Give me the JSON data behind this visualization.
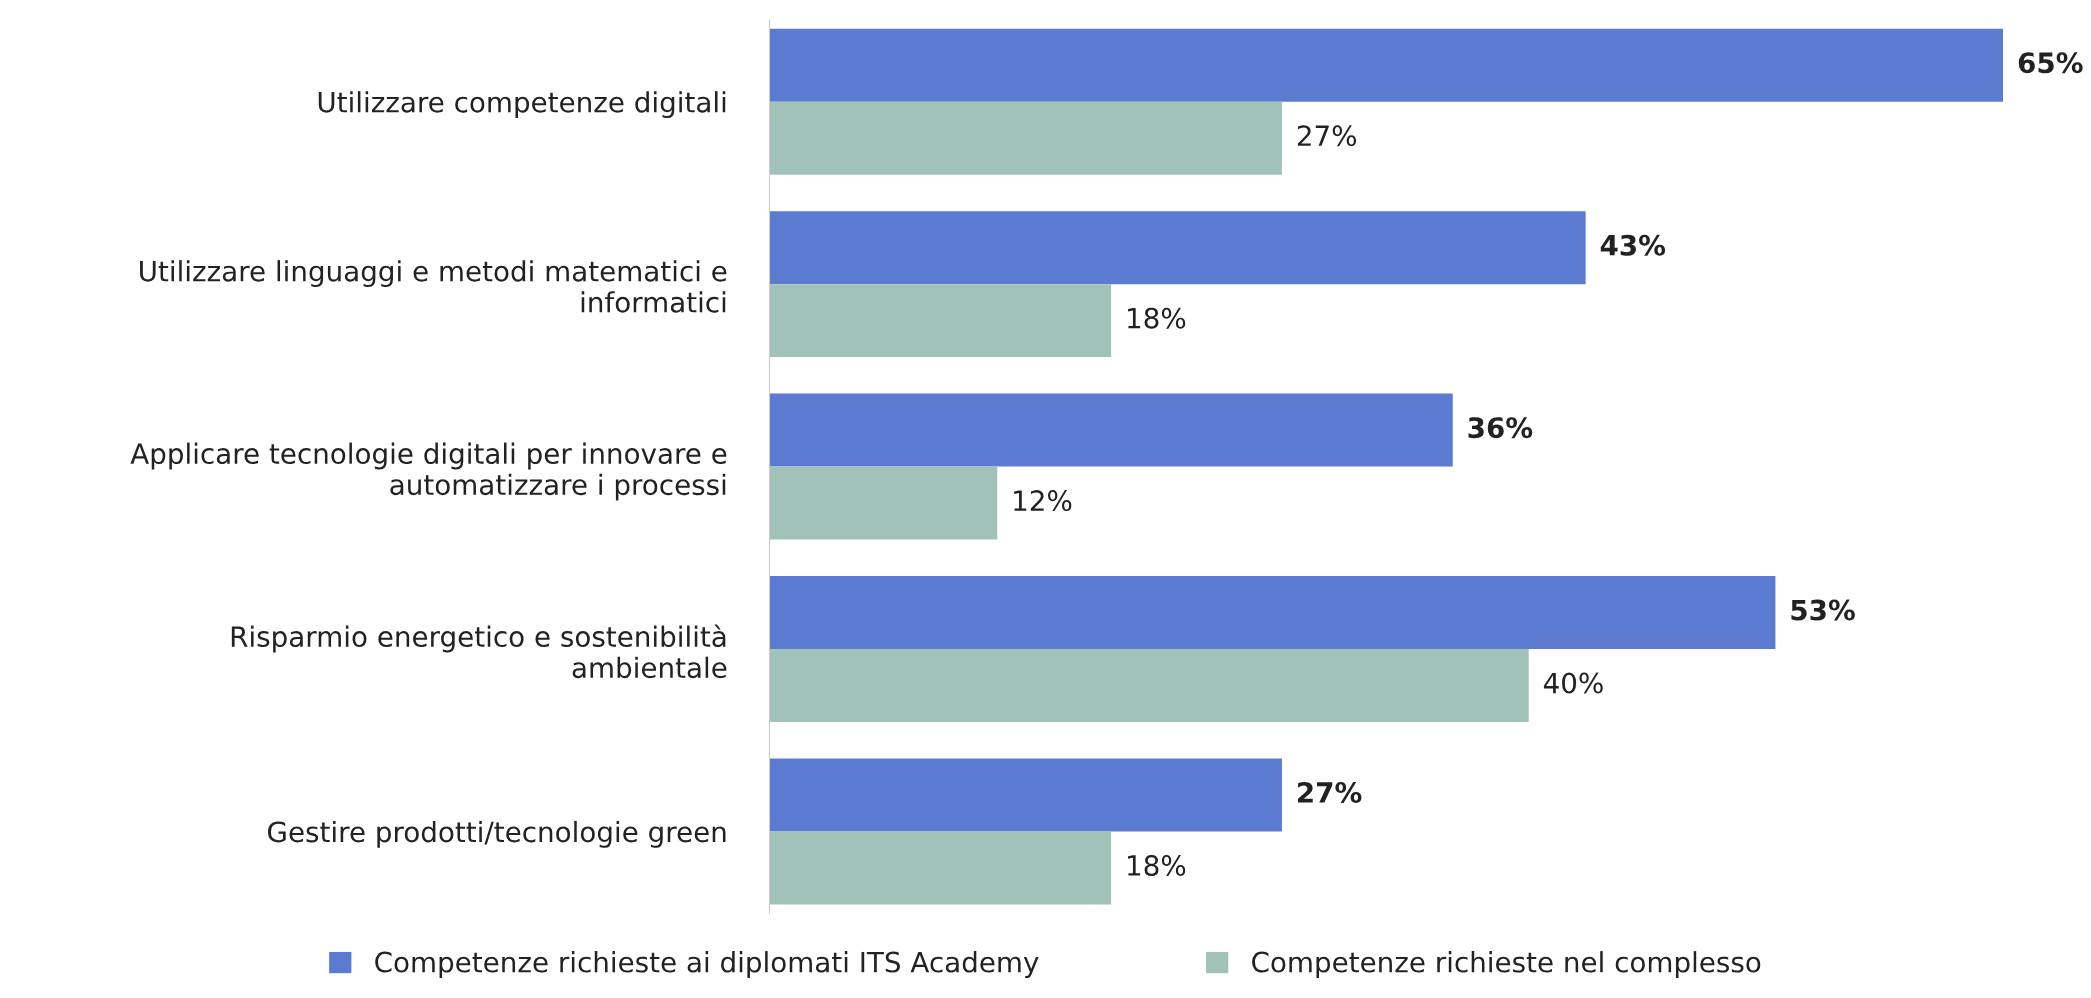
{
  "chart_data": {
    "type": "bar",
    "orientation": "horizontal",
    "categories": [
      "Utilizzare competenze digitali",
      "Utilizzare linguaggi e metodi matematici e\ninformatici",
      "Applicare tecnologie digitali per innovare e\nautomatizzare i processi",
      "Risparmio energetico e sostenibilità\nambientale",
      "Gestire prodotti/tecnologie green"
    ],
    "series": [
      {
        "name": "Competenze richieste ai diplomati ITS Academy",
        "color": "#5b7bd0",
        "values": [
          65,
          43,
          36,
          53,
          27
        ],
        "value_labels": [
          "65%",
          "43%",
          "36%",
          "53%",
          "27%"
        ]
      },
      {
        "name": "Competenze richieste nel complesso",
        "color": "#a0c2b8",
        "values": [
          27,
          18,
          12,
          40,
          18
        ],
        "value_labels": [
          "27%",
          "18%",
          "12%",
          "40%",
          "18%"
        ]
      }
    ],
    "legend": "bottom",
    "grid": false
  }
}
